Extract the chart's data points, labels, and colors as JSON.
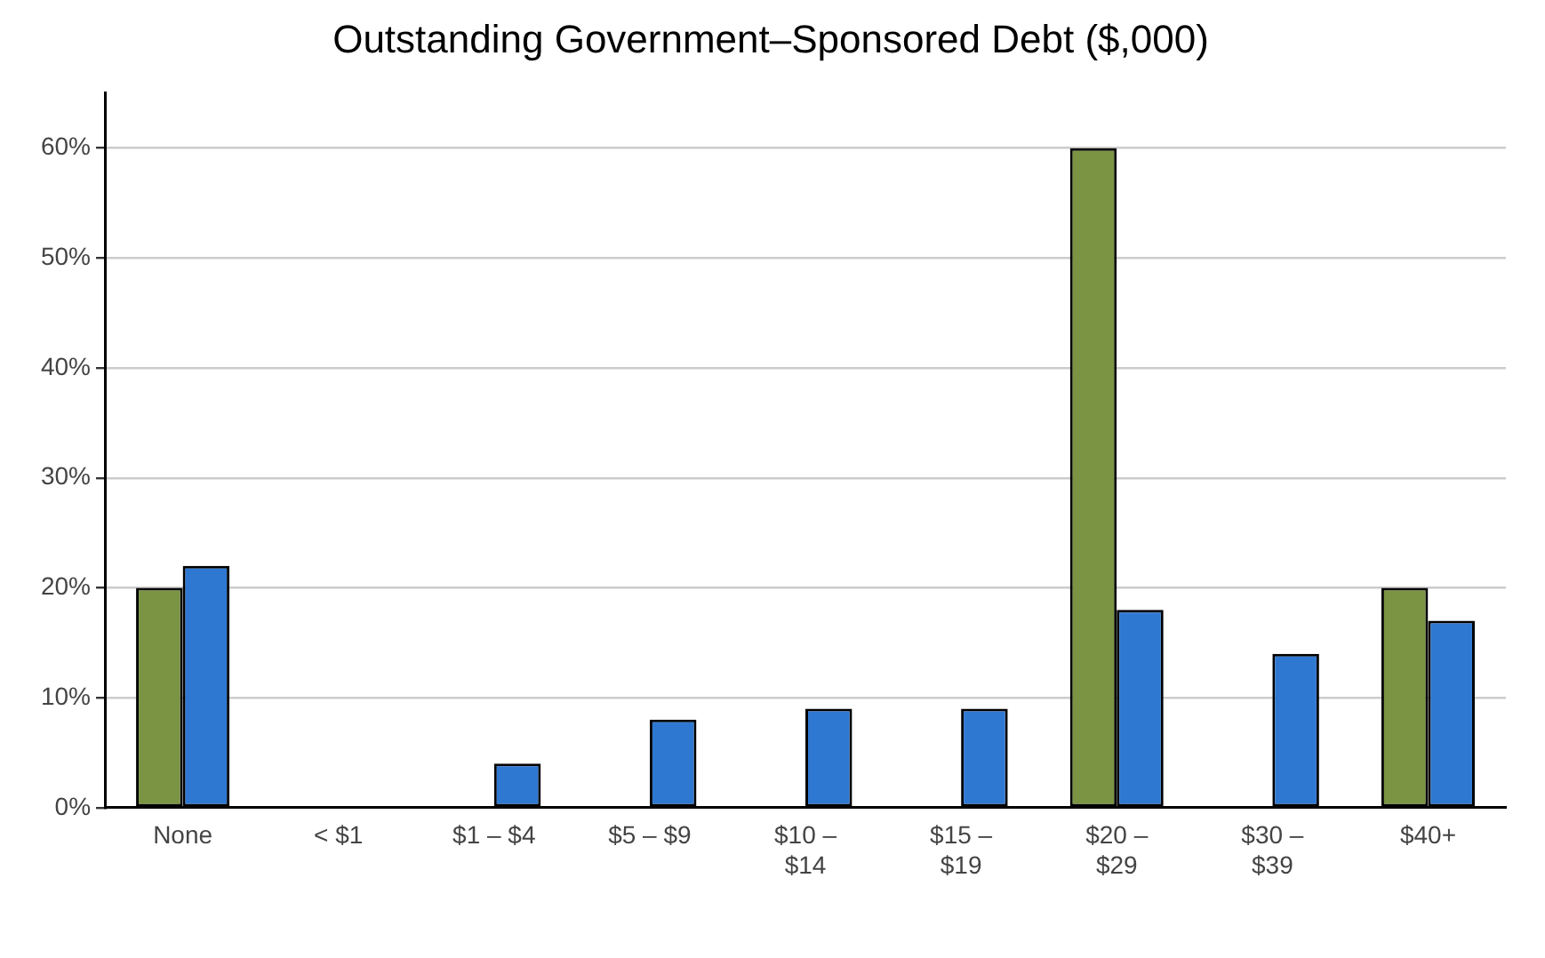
{
  "chart_data": {
    "type": "bar",
    "title": "Outstanding Government–Sponsored Debt ($,000)",
    "categories": [
      "None",
      "< $1",
      "$1 – $4",
      "$5 – $9",
      "$10 –\n$14",
      "$15 –\n$19",
      "$20 –\n$29",
      "$30 –\n$39",
      "$40+"
    ],
    "series": [
      {
        "color": "#7a9443",
        "values": [
          20,
          0,
          0,
          0,
          0,
          0,
          60,
          0,
          20
        ]
      },
      {
        "color": "#2f78d2",
        "values": [
          22,
          0,
          4,
          8,
          9,
          9,
          18,
          14,
          17
        ]
      }
    ],
    "ylim": [
      0,
      65
    ],
    "yticks": [
      {
        "value": 0,
        "label": "0%"
      },
      {
        "value": 10,
        "label": "10%"
      },
      {
        "value": 20,
        "label": "20%"
      },
      {
        "value": 30,
        "label": "30%"
      },
      {
        "value": 40,
        "label": "40%"
      },
      {
        "value": 50,
        "label": "50%"
      },
      {
        "value": 60,
        "label": "60%"
      }
    ],
    "grid": "y",
    "legend": false
  }
}
